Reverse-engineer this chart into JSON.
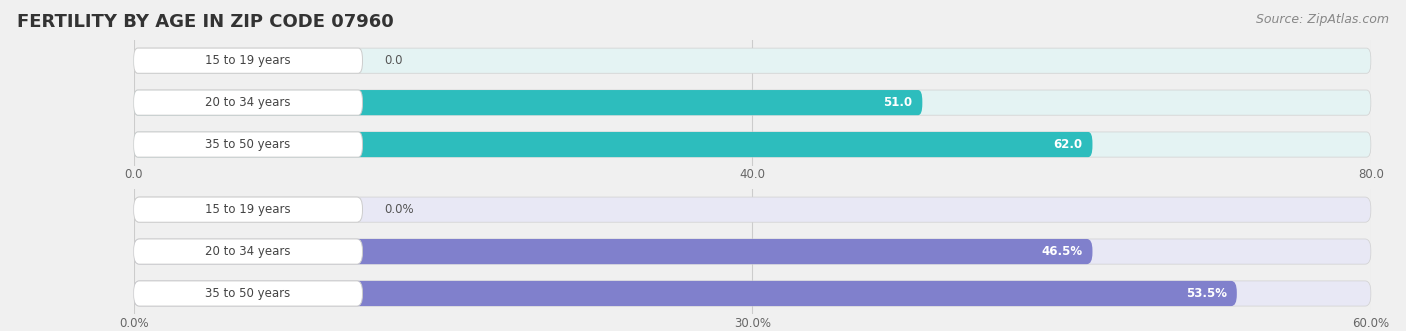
{
  "title": "FERTILITY BY AGE IN ZIP CODE 07960",
  "source": "Source: ZipAtlas.com",
  "chart1": {
    "categories": [
      "15 to 19 years",
      "20 to 34 years",
      "35 to 50 years"
    ],
    "values": [
      0.0,
      51.0,
      62.0
    ],
    "xmax": 80.0,
    "xticks": [
      0.0,
      40.0,
      80.0
    ],
    "bar_color": "#2dbdbd",
    "bar_bg_color": "#e4f3f3",
    "show_percent": false
  },
  "chart2": {
    "categories": [
      "15 to 19 years",
      "20 to 34 years",
      "35 to 50 years"
    ],
    "values": [
      0.0,
      46.5,
      53.5
    ],
    "xmax": 60.0,
    "xticks": [
      0.0,
      30.0,
      60.0
    ],
    "bar_color": "#8080cc",
    "bar_bg_color": "#e8e8f5",
    "show_percent": true
  },
  "title_fontsize": 13,
  "source_fontsize": 9,
  "category_fontsize": 8.5,
  "value_fontsize": 8.5,
  "tick_fontsize": 8.5,
  "bar_height": 0.6,
  "fig_bg": "#f0f0f0"
}
